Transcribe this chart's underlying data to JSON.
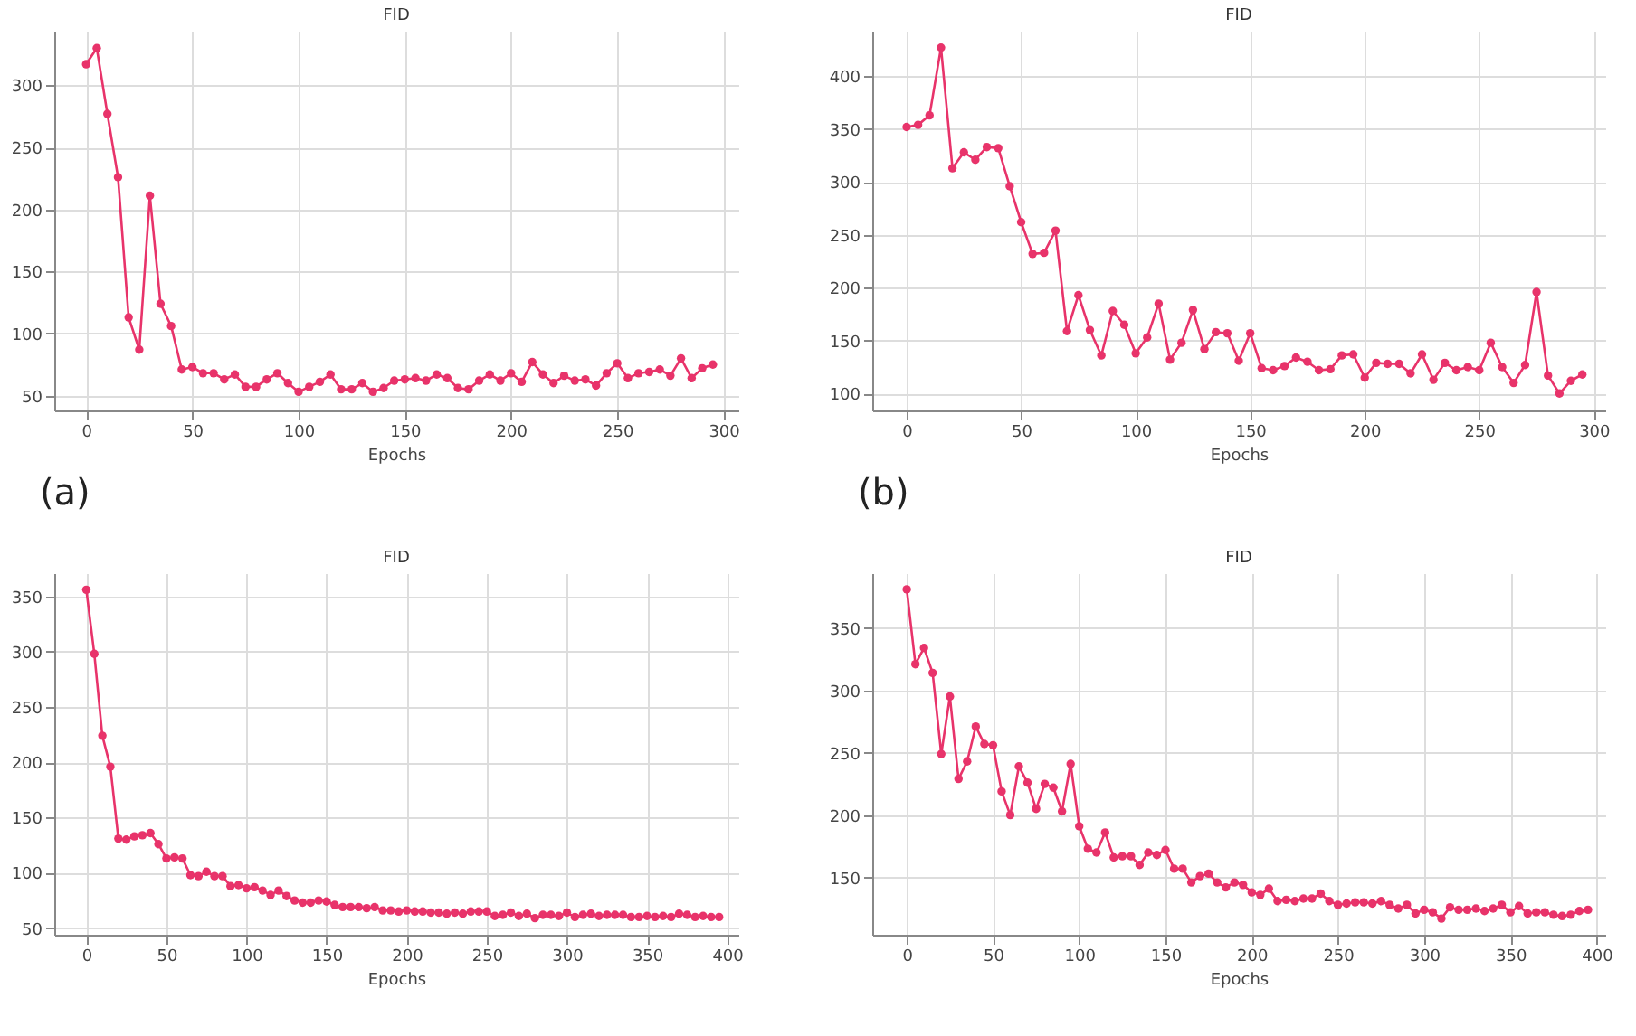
{
  "chart_data": [
    {
      "type": "line",
      "title": "FID",
      "xlabel": "Epochs",
      "annotations": [
        "(a)"
      ],
      "marker": "circle",
      "line_style": "solid",
      "grid": true,
      "xlim": [
        -15,
        307
      ],
      "ylim": [
        38,
        344
      ],
      "xticks": [
        0,
        50,
        100,
        150,
        200,
        250,
        300
      ],
      "yticks": [
        50,
        100,
        150,
        200,
        250,
        300
      ],
      "x": [
        0,
        5,
        10,
        15,
        20,
        25,
        30,
        35,
        40,
        45,
        50,
        55,
        60,
        65,
        70,
        75,
        80,
        85,
        90,
        95,
        100,
        105,
        110,
        115,
        120,
        125,
        130,
        135,
        140,
        145,
        150,
        155,
        160,
        165,
        170,
        175,
        180,
        185,
        190,
        195,
        200,
        205,
        210,
        215,
        220,
        225,
        230,
        235,
        240,
        245,
        250,
        255,
        260,
        265,
        270,
        275,
        280,
        285,
        290,
        295
      ],
      "series": [
        {
          "color": "#e8336a",
          "values": [
            317,
            330,
            277,
            226,
            113,
            87,
            211,
            124,
            106,
            71,
            73,
            68,
            68,
            63,
            67,
            57,
            57,
            63,
            68,
            60,
            53,
            57,
            61,
            67,
            55,
            55,
            60,
            53,
            56,
            62,
            63,
            64,
            62,
            67,
            64,
            56,
            55,
            62,
            67,
            62,
            68,
            61,
            77,
            67,
            60,
            66,
            62,
            63,
            58,
            68,
            76,
            64,
            68,
            69,
            71,
            66,
            80,
            64,
            72,
            75
          ]
        }
      ]
    },
    {
      "type": "line",
      "title": "FID",
      "xlabel": "Epochs",
      "annotations": [
        "(b)"
      ],
      "marker": "circle",
      "line_style": "solid",
      "grid": true,
      "xlim": [
        -15,
        305
      ],
      "ylim": [
        84,
        443
      ],
      "xticks": [
        0,
        50,
        100,
        150,
        200,
        250,
        300
      ],
      "yticks": [
        100,
        150,
        200,
        250,
        300,
        350,
        400
      ],
      "x": [
        0,
        5,
        10,
        15,
        20,
        25,
        30,
        35,
        40,
        45,
        50,
        55,
        60,
        65,
        70,
        75,
        80,
        85,
        90,
        95,
        100,
        105,
        110,
        115,
        120,
        125,
        130,
        135,
        140,
        145,
        150,
        155,
        160,
        165,
        170,
        175,
        180,
        185,
        190,
        195,
        200,
        205,
        210,
        215,
        220,
        225,
        230,
        235,
        240,
        245,
        250,
        255,
        260,
        265,
        270,
        275,
        280,
        285,
        290,
        295
      ],
      "series": [
        {
          "color": "#e8336a",
          "values": [
            352,
            354,
            363,
            427,
            313,
            328,
            321,
            333,
            332,
            296,
            262,
            232,
            233,
            254,
            159,
            193,
            160,
            136,
            178,
            165,
            138,
            153,
            185,
            132,
            148,
            179,
            142,
            158,
            157,
            131,
            157,
            124,
            122,
            126,
            134,
            130,
            122,
            123,
            136,
            137,
            115,
            129,
            128,
            128,
            119,
            137,
            113,
            129,
            122,
            125,
            122,
            148,
            125,
            110,
            127,
            196,
            117,
            100,
            112,
            118
          ]
        }
      ]
    },
    {
      "type": "line",
      "title": "FID",
      "xlabel": "Epochs",
      "marker": "circle",
      "line_style": "solid",
      "grid": true,
      "xlim": [
        -20,
        407
      ],
      "ylim": [
        44,
        371
      ],
      "xticks": [
        0,
        50,
        100,
        150,
        200,
        250,
        300,
        350,
        400
      ],
      "yticks": [
        50,
        100,
        150,
        200,
        250,
        300,
        350
      ],
      "x": [
        0,
        5,
        10,
        15,
        20,
        25,
        30,
        35,
        40,
        45,
        50,
        55,
        60,
        65,
        70,
        75,
        80,
        85,
        90,
        95,
        100,
        105,
        110,
        115,
        120,
        125,
        130,
        135,
        140,
        145,
        150,
        155,
        160,
        165,
        170,
        175,
        180,
        185,
        190,
        195,
        200,
        205,
        210,
        215,
        220,
        225,
        230,
        235,
        240,
        245,
        250,
        255,
        260,
        265,
        270,
        275,
        280,
        285,
        290,
        295,
        300,
        305,
        310,
        315,
        320,
        325,
        330,
        335,
        340,
        345,
        350,
        355,
        360,
        365,
        370,
        375,
        380,
        385,
        390,
        395
      ],
      "series": [
        {
          "color": "#e8336a",
          "values": [
            356,
            298,
            224,
            196,
            131,
            130,
            133,
            134,
            136,
            126,
            113,
            114,
            113,
            98,
            97,
            101,
            97,
            97,
            88,
            89,
            86,
            87,
            84,
            80,
            84,
            79,
            75,
            73,
            73,
            75,
            74,
            71,
            69,
            69,
            69,
            68,
            69,
            66,
            66,
            65,
            66,
            65,
            65,
            64,
            64,
            63,
            64,
            63,
            65,
            65,
            65,
            61,
            62,
            64,
            61,
            63,
            59,
            62,
            62,
            61,
            64,
            60,
            62,
            63,
            61,
            62,
            62,
            62,
            60,
            60,
            61,
            60,
            61,
            60,
            63,
            62,
            60,
            61,
            60,
            60
          ]
        }
      ]
    },
    {
      "type": "line",
      "title": "FID",
      "xlabel": "Epochs",
      "marker": "circle",
      "line_style": "solid",
      "grid": true,
      "xlim": [
        -20,
        405
      ],
      "ylim": [
        104,
        394
      ],
      "xticks": [
        0,
        50,
        100,
        150,
        200,
        250,
        300,
        350,
        400
      ],
      "yticks": [
        150,
        200,
        250,
        300,
        350
      ],
      "x": [
        0,
        5,
        10,
        15,
        20,
        25,
        30,
        35,
        40,
        45,
        50,
        55,
        60,
        65,
        70,
        75,
        80,
        85,
        90,
        95,
        100,
        105,
        110,
        115,
        120,
        125,
        130,
        135,
        140,
        145,
        150,
        155,
        160,
        165,
        170,
        175,
        180,
        185,
        190,
        195,
        200,
        205,
        210,
        215,
        220,
        225,
        230,
        235,
        240,
        245,
        250,
        255,
        260,
        265,
        270,
        275,
        280,
        285,
        290,
        295,
        300,
        305,
        310,
        315,
        320,
        325,
        330,
        335,
        340,
        345,
        350,
        355,
        360,
        365,
        370,
        375,
        380,
        385,
        390,
        395
      ],
      "series": [
        {
          "color": "#e8336a",
          "values": [
            381,
            321,
            334,
            314,
            249,
            295,
            229,
            243,
            271,
            257,
            256,
            219,
            200,
            239,
            226,
            205,
            225,
            222,
            203,
            241,
            191,
            173,
            170,
            186,
            166,
            167,
            167,
            160,
            170,
            168,
            172,
            157,
            157,
            146,
            151,
            153,
            146,
            142,
            146,
            144,
            138,
            136,
            141,
            131,
            132,
            131,
            133,
            133,
            137,
            131,
            128,
            129,
            130,
            130,
            129,
            131,
            128,
            125,
            128,
            121,
            124,
            122,
            117,
            126,
            124,
            124,
            125,
            123,
            125,
            128,
            122,
            127,
            121,
            122,
            122,
            120,
            119,
            120,
            123,
            124
          ]
        }
      ]
    }
  ]
}
